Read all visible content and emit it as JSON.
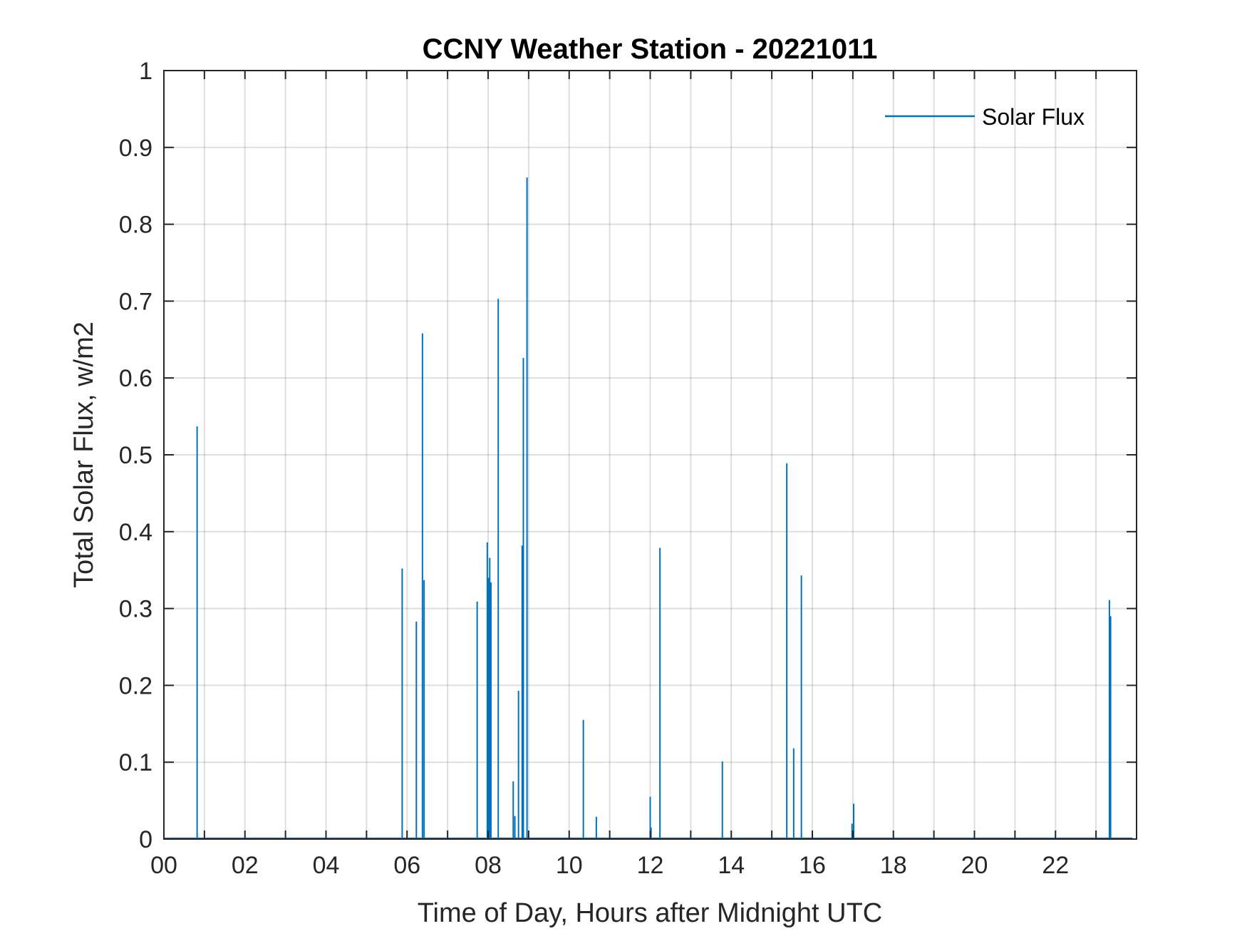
{
  "chart_data": {
    "type": "line",
    "title": "CCNY Weather Station - 20221011",
    "xlabel": "Time of Day, Hours after Midnight UTC",
    "ylabel": "Total Solar Flux, w/m2",
    "xlim": [
      0,
      24
    ],
    "ylim": [
      0,
      1
    ],
    "xticks": [
      0,
      2,
      4,
      6,
      8,
      10,
      12,
      14,
      16,
      18,
      20,
      22
    ],
    "xtick_labels": [
      "00",
      "02",
      "04",
      "06",
      "08",
      "10",
      "12",
      "14",
      "16",
      "18",
      "20",
      "22"
    ],
    "yticks": [
      0,
      0.1,
      0.2,
      0.3,
      0.4,
      0.5,
      0.6,
      0.7,
      0.8,
      0.9,
      1
    ],
    "ytick_labels": [
      "0",
      "0.1",
      "0.2",
      "0.3",
      "0.4",
      "0.5",
      "0.6",
      "0.7",
      "0.8",
      "0.9",
      "1"
    ],
    "grid": true,
    "legend_position": "top-right",
    "series": [
      {
        "name": "Solar Flux",
        "color": "#0072BD",
        "spikes": [
          {
            "x": 0.82,
            "y": 0.537
          },
          {
            "x": 5.88,
            "y": 0.352
          },
          {
            "x": 6.23,
            "y": 0.283
          },
          {
            "x": 6.38,
            "y": 0.658
          },
          {
            "x": 6.42,
            "y": 0.337
          },
          {
            "x": 7.73,
            "y": 0.309
          },
          {
            "x": 7.98,
            "y": 0.386
          },
          {
            "x": 8.01,
            "y": 0.34
          },
          {
            "x": 8.04,
            "y": 0.366
          },
          {
            "x": 8.07,
            "y": 0.334
          },
          {
            "x": 8.25,
            "y": 0.703
          },
          {
            "x": 8.62,
            "y": 0.075
          },
          {
            "x": 8.66,
            "y": 0.03
          },
          {
            "x": 8.75,
            "y": 0.193
          },
          {
            "x": 8.84,
            "y": 0.382
          },
          {
            "x": 8.87,
            "y": 0.626
          },
          {
            "x": 8.96,
            "y": 0.861
          },
          {
            "x": 10.35,
            "y": 0.155
          },
          {
            "x": 10.67,
            "y": 0.029
          },
          {
            "x": 12.0,
            "y": 0.055
          },
          {
            "x": 12.02,
            "y": 0.015
          },
          {
            "x": 12.24,
            "y": 0.379
          },
          {
            "x": 13.78,
            "y": 0.101
          },
          {
            "x": 15.37,
            "y": 0.489
          },
          {
            "x": 15.54,
            "y": 0.118
          },
          {
            "x": 15.73,
            "y": 0.343
          },
          {
            "x": 16.98,
            "y": 0.02
          },
          {
            "x": 17.02,
            "y": 0.046
          },
          {
            "x": 23.33,
            "y": 0.311
          },
          {
            "x": 23.36,
            "y": 0.29
          }
        ]
      }
    ]
  }
}
